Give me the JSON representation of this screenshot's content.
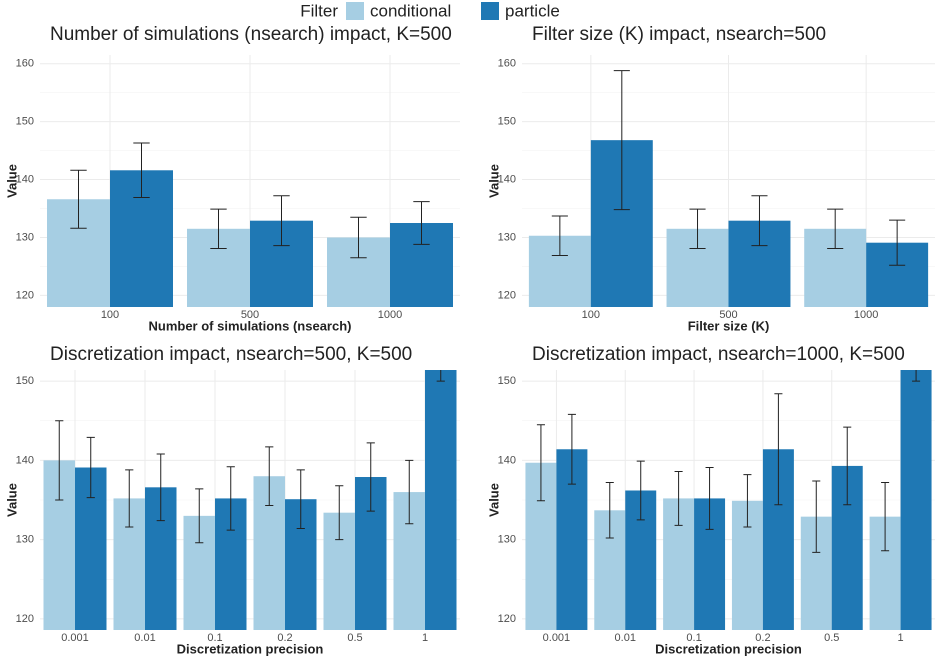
{
  "legend": {
    "title": "Filter"
  },
  "chart_data": [
    {
      "type": "bar",
      "title": "Number of simulations (nsearch) impact, K=500",
      "x_label": "Number of simulations (nsearch)",
      "y_label": "Value",
      "categories": [
        "100",
        "500",
        "1000"
      ],
      "series": [
        {
          "name": "conditional",
          "color": "#a6cee3",
          "values": [
            136.6,
            131.5,
            130.0
          ],
          "errors": [
            5.0,
            3.4,
            3.5
          ]
        },
        {
          "name": "particle",
          "color": "#1f78b4",
          "values": [
            141.6,
            132.9,
            132.5
          ],
          "errors": [
            4.7,
            4.3,
            3.7
          ]
        }
      ],
      "ylim": [
        118,
        161.5
      ],
      "yticks": [
        120,
        130,
        140,
        150,
        160
      ],
      "grid": true
    },
    {
      "type": "bar",
      "title": "Filter size (K) impact, nsearch=500",
      "x_label": "Filter size (K)",
      "y_label": "Value",
      "categories": [
        "100",
        "500",
        "1000"
      ],
      "series": [
        {
          "name": "conditional",
          "color": "#a6cee3",
          "values": [
            130.3,
            131.5,
            131.5
          ],
          "errors": [
            3.4,
            3.4,
            3.4
          ]
        },
        {
          "name": "particle",
          "color": "#1f78b4",
          "values": [
            146.8,
            132.9,
            129.1
          ],
          "errors": [
            12.0,
            4.3,
            3.9
          ]
        }
      ],
      "ylim": [
        118,
        161.5
      ],
      "yticks": [
        120,
        130,
        140,
        150,
        160
      ],
      "grid": true
    },
    {
      "type": "bar",
      "title": "Discretization impact, nsearch=500, K=500",
      "x_label": "Discretization precision",
      "y_label": "Value",
      "categories": [
        "0.001",
        "0.01",
        "0.1",
        "0.2",
        "0.5",
        "1"
      ],
      "series": [
        {
          "name": "conditional",
          "color": "#a6cee3",
          "values": [
            140.0,
            135.2,
            133.0,
            138.0,
            133.4,
            136.0
          ],
          "errors": [
            5.0,
            3.6,
            3.4,
            3.7,
            3.4,
            4.0
          ]
        },
        {
          "name": "particle",
          "color": "#1f78b4",
          "values": [
            139.1,
            136.6,
            135.2,
            135.1,
            137.9,
            155
          ],
          "errors": [
            3.8,
            4.2,
            4.0,
            3.7,
            4.3,
            5
          ]
        }
      ],
      "ylim": [
        118.6,
        151.4
      ],
      "yticks": [
        120,
        130,
        140,
        150
      ],
      "grid": true
    },
    {
      "type": "bar",
      "title": "Discretization impact, nsearch=1000, K=500",
      "x_label": "Discretization precision",
      "y_label": "Value",
      "categories": [
        "0.001",
        "0.01",
        "0.1",
        "0.2",
        "0.5",
        "1"
      ],
      "series": [
        {
          "name": "conditional",
          "color": "#a6cee3",
          "values": [
            139.7,
            133.7,
            135.2,
            134.9,
            132.9,
            132.9
          ],
          "errors": [
            4.8,
            3.5,
            3.4,
            3.3,
            4.5,
            4.3
          ]
        },
        {
          "name": "particle",
          "color": "#1f78b4",
          "values": [
            141.4,
            136.2,
            135.2,
            141.4,
            139.3,
            155
          ],
          "errors": [
            4.4,
            3.7,
            3.9,
            7.0,
            4.9,
            5
          ]
        }
      ],
      "ylim": [
        118.6,
        151.4
      ],
      "yticks": [
        120,
        130,
        140,
        150
      ],
      "grid": true
    }
  ]
}
